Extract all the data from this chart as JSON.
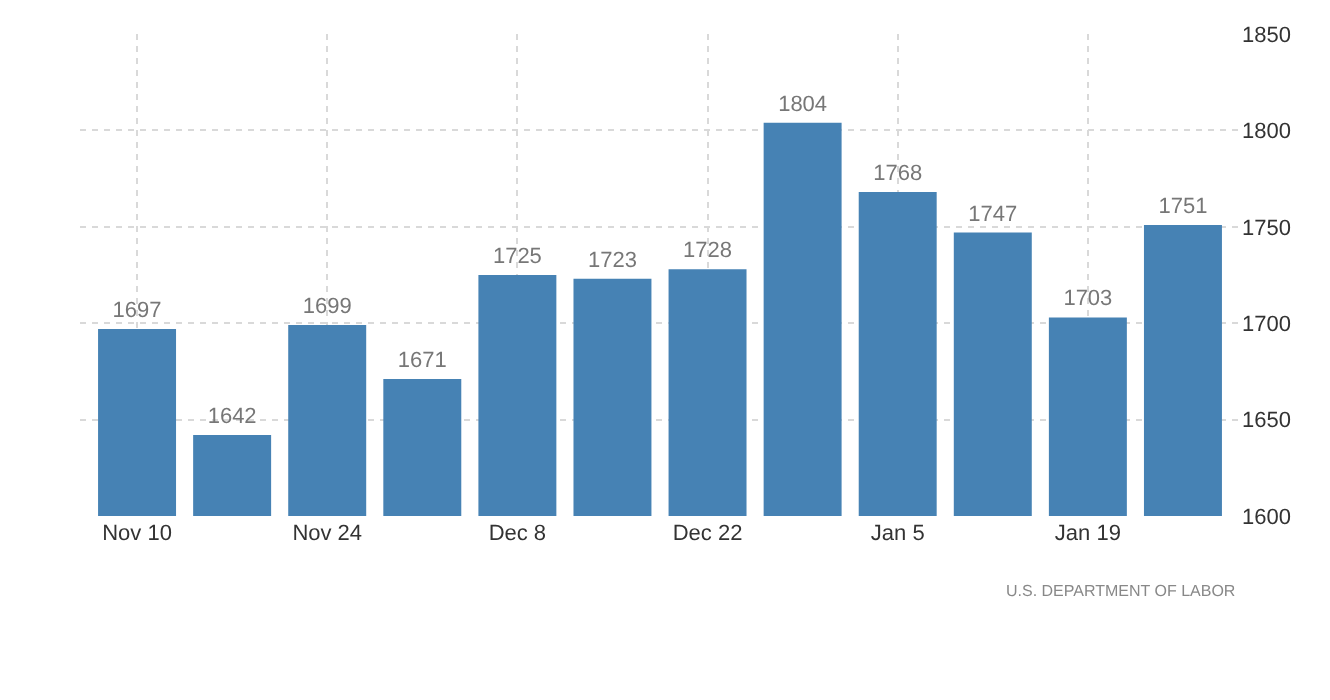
{
  "chart_data": {
    "type": "bar",
    "categories": [
      "Nov 10",
      null,
      "Nov 24",
      null,
      "Dec 8",
      null,
      "Dec 22",
      null,
      "Jan 5",
      null,
      "Jan 19",
      null
    ],
    "values": [
      1697,
      1642,
      1699,
      1671,
      1725,
      1723,
      1728,
      1804,
      1768,
      1747,
      1703,
      1751
    ],
    "color": "#4682b4",
    "ylim": [
      1600,
      1850
    ],
    "yticks": [
      1600,
      1650,
      1700,
      1750,
      1800,
      1850
    ],
    "grid": true,
    "data_labels": true,
    "annotations": [
      "U.S. DEPARTMENT OF LABOR"
    ]
  }
}
